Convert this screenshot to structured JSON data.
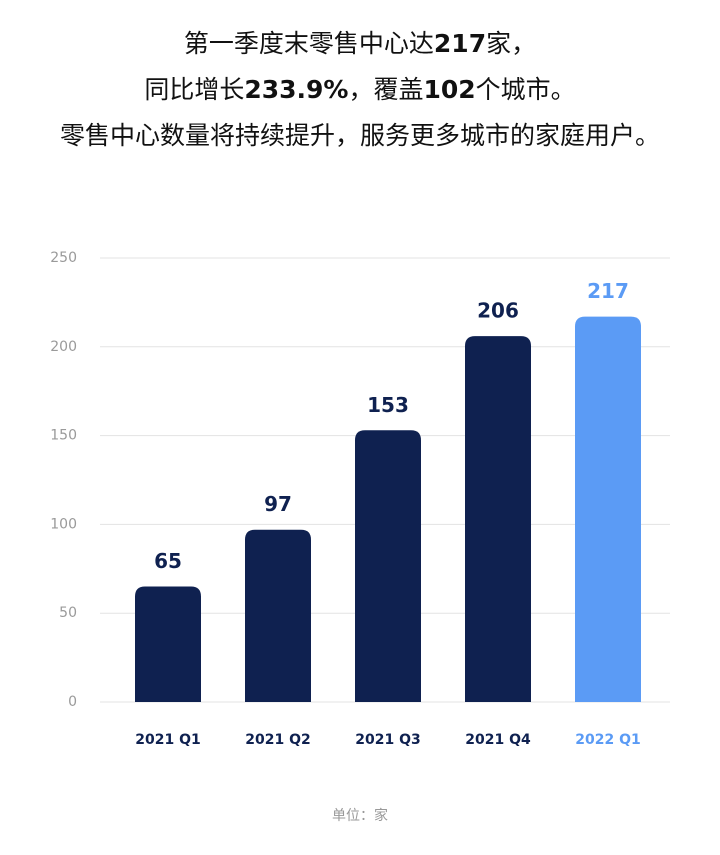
{
  "chart_data": {
    "type": "bar",
    "title_lines": [
      [
        {
          "text": "第一季度末零售中心达",
          "bold": false
        },
        {
          "text": "217",
          "bold": true
        },
        {
          "text": "家，",
          "bold": false
        }
      ],
      [
        {
          "text": "同比增长",
          "bold": false
        },
        {
          "text": "233.9%",
          "bold": true
        },
        {
          "text": "，覆盖",
          "bold": false
        },
        {
          "text": "102",
          "bold": true
        },
        {
          "text": "个城市。",
          "bold": false
        }
      ],
      [
        {
          "text": "零售中心数量将持续提升，服务更多城市的家庭用户。",
          "bold": false
        }
      ]
    ],
    "categories": [
      "2021 Q1",
      "2021 Q2",
      "2021 Q3",
      "2021 Q4",
      "2022 Q1"
    ],
    "values": [
      65,
      97,
      153,
      206,
      217
    ],
    "colors": [
      "#0f2150",
      "#0f2150",
      "#0f2150",
      "#0f2150",
      "#5b9bf5"
    ],
    "ylim": [
      0,
      250
    ],
    "yticks": [
      0,
      50,
      100,
      150,
      200,
      250
    ],
    "grid": true,
    "unit_note": "单位：家"
  }
}
